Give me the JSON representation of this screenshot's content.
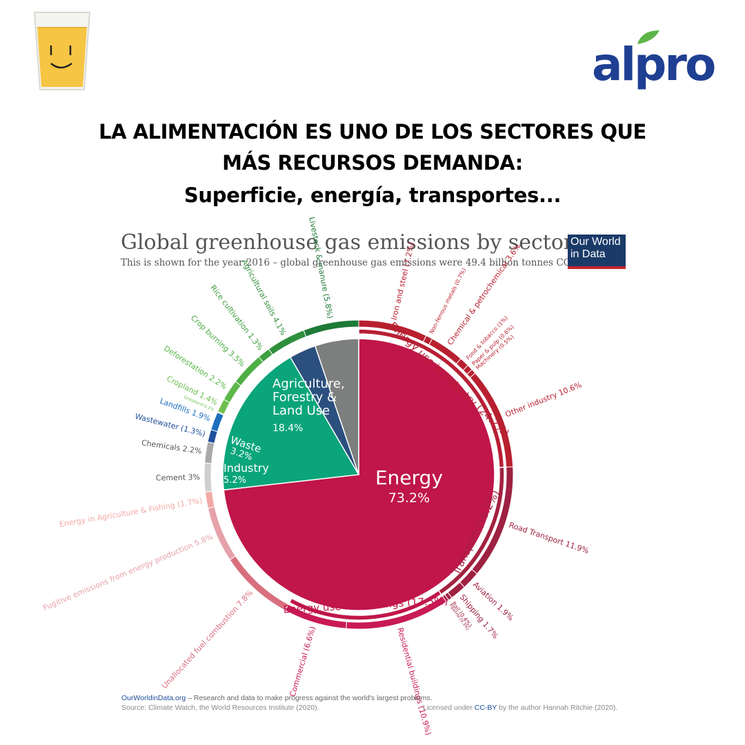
{
  "logo": {
    "brand": "alpro"
  },
  "headline": {
    "line1": "LA ALIMENTACIÓN ES UNO DE LOS SECTORES QUE",
    "line2": "MÁS RECURSOS DEMANDA:",
    "line3": "Superficie, energía, transportes..."
  },
  "badge": {
    "line1": "Our World",
    "line2": "in Data"
  },
  "footer": {
    "site": "OurWorldinData.org",
    "tagline": " – Research and data to make progress against the world's largest problems.",
    "source": "Source: Climate Watch, the World Resources Institute (2020).",
    "license_pre": "Licensed under ",
    "license_link": "CC-BY",
    "license_post": " by the author Hannah Ritchie  (2020)."
  },
  "colors": {
    "energy": "#c0164a",
    "agriculture": "#0aa57a",
    "waste": "#2b4f7e",
    "industry": "#7d7f7e"
  },
  "chart_data": {
    "type": "pie",
    "title": "Global greenhouse gas emissions by sector",
    "subtitle": "This is shown for the year 2016 – global greenhouse gas emissions were 49.4 billion tonnes CO₂eq.",
    "sectors": [
      {
        "name": "Energy",
        "value": 73.2,
        "label": "73.2%",
        "color": "#c0164a"
      },
      {
        "name": "Agriculture, Forestry & Land Use",
        "value": 18.4,
        "label": "18.4%",
        "color": "#0aa57a"
      },
      {
        "name": "Waste",
        "value": 3.2,
        "label": "3.2%",
        "color": "#2b4f7e"
      },
      {
        "name": "Industry",
        "value": 5.2,
        "label": "5.2%",
        "color": "#7d7f7e"
      }
    ],
    "middle_ring": [
      {
        "name": "Energy use in Industry (24.2%)",
        "value": 24.2,
        "color": "#b71f35"
      },
      {
        "name": "Transport (16.2%)",
        "value": 16.2,
        "color": "#a3213f"
      },
      {
        "name": "Energy use in buildings (17.5%)",
        "value": 17.5,
        "color": "#c0164a"
      }
    ],
    "subsectors": [
      {
        "name": "Iron and steel",
        "value": 7.2,
        "label": "Iron and steel (7.2%)",
        "color": "#b8202f"
      },
      {
        "name": "Non-ferrous metals",
        "value": 0.7,
        "label": "Non-ferrous metals (0.7%)",
        "color": "#b8202f"
      },
      {
        "name": "Chemical & petrochemical",
        "value": 3.6,
        "label": "Chemical & petrochemical 3.6%",
        "color": "#b8202f"
      },
      {
        "name": "Food & tobacco",
        "value": 1.0,
        "label": "Food & tobacco (1%)",
        "color": "#b8202f"
      },
      {
        "name": "Paper & pulp",
        "value": 0.6,
        "label": "Paper & pulp (0.6%)",
        "color": "#b8202f"
      },
      {
        "name": "Machinery",
        "value": 0.5,
        "label": "Machinery (0.5%)",
        "color": "#b8202f"
      },
      {
        "name": "Other industry",
        "value": 10.6,
        "label": "Other industry 10.6%",
        "color": "#b8202f"
      },
      {
        "name": "Road Transport",
        "value": 11.9,
        "label": "Road Transport 11.9%",
        "color": "#9e2141"
      },
      {
        "name": "Aviation",
        "value": 1.9,
        "label": "Aviation 1.9%",
        "color": "#9e2141"
      },
      {
        "name": "Shipping",
        "value": 1.7,
        "label": "Shipping 1.7%",
        "color": "#9e2141"
      },
      {
        "name": "Rail",
        "value": 0.4,
        "label": "Rail (0.4%)",
        "color": "#9e2141"
      },
      {
        "name": "Pipeline",
        "value": 0.3,
        "label": "Pipeline (0.3%)",
        "color": "#9e2141"
      },
      {
        "name": "Residential buildings",
        "value": 10.9,
        "label": "Residential buildings (10.9%)",
        "color": "#c81a55"
      },
      {
        "name": "Commercial",
        "value": 6.6,
        "label": "Commercial (6.6%)",
        "color": "#c81a55"
      },
      {
        "name": "Unallocated fuel combustion",
        "value": 7.8,
        "label": "Unallocated fuel combustion 7.8%",
        "color": "#d96f7e"
      },
      {
        "name": "Fugitive emissions from energy production",
        "value": 5.8,
        "label": "Fugitive emissions from energy production 5.8%",
        "color": "#e6a2aa"
      },
      {
        "name": "Energy in Agriculture & Fishing",
        "value": 1.7,
        "label": "Energy in Agriculture & Fishing (1.7%)",
        "color": "#f2a9a6"
      },
      {
        "name": "Cement",
        "value": 3.0,
        "label": "Cement 3%",
        "color": "#cfcfcf"
      },
      {
        "name": "Chemicals",
        "value": 2.2,
        "label": "Chemicals 2.2%",
        "color": "#a9a9a9"
      },
      {
        "name": "Wastewater",
        "value": 1.3,
        "label": "Wastewater (1.3%)",
        "color": "#1f4f9c"
      },
      {
        "name": "Landfills",
        "value": 1.9,
        "label": "Landfills 1.9%",
        "color": "#1f6fbf"
      },
      {
        "name": "Grassland",
        "value": 0.1,
        "label": "Grassland 0.1%",
        "color": "#6fbf50"
      },
      {
        "name": "Cropland",
        "value": 1.4,
        "label": "Cropland 1.4%",
        "color": "#6fbf50"
      },
      {
        "name": "Deforestation",
        "value": 2.2,
        "label": "Deforestation 2.2%",
        "color": "#5cb84a"
      },
      {
        "name": "Crop burning",
        "value": 3.5,
        "label": "Crop burning 3.5%",
        "color": "#4fae45"
      },
      {
        "name": "Rice cultivation",
        "value": 1.3,
        "label": "Rice cultivation 1.3%",
        "color": "#3f9f40"
      },
      {
        "name": "Agricultural soils",
        "value": 4.1,
        "label": "Agricultural soils 4.1%",
        "color": "#2f8f3c"
      },
      {
        "name": "Livestock & manure",
        "value": 5.8,
        "label": "Livestock & manure (5.8%)",
        "color": "#1d7a37"
      }
    ]
  }
}
